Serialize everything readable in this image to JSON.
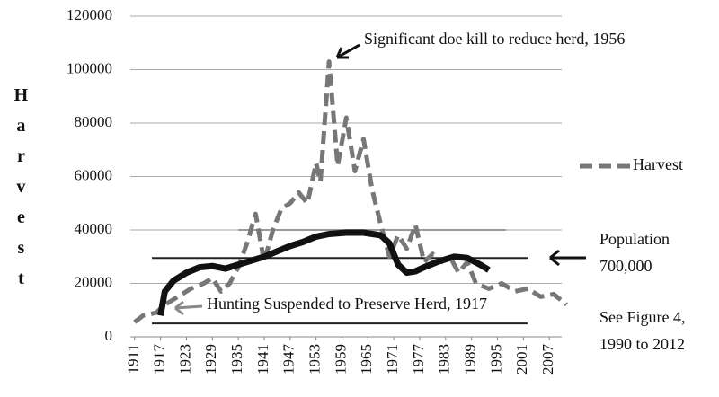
{
  "chart_data": {
    "type": "line",
    "y_label": "Harvest",
    "xlim": [
      1910,
      2013
    ],
    "xticks": [
      1911,
      1917,
      1923,
      1929,
      1935,
      1941,
      1947,
      1953,
      1959,
      1965,
      1971,
      1977,
      1983,
      1989,
      1995,
      2001,
      2007
    ],
    "ylim": [
      0,
      120000
    ],
    "yticks": [
      0,
      20000,
      40000,
      60000,
      80000,
      100000,
      120000
    ],
    "grid": true,
    "legend": "right",
    "series": [
      {
        "name": "Harvest",
        "color": "#777777",
        "dashed": true,
        "x": [
          1911,
          1913,
          1916,
          1918,
          1921,
          1924,
          1927,
          1929,
          1931,
          1933,
          1935,
          1937,
          1939,
          1941,
          1943,
          1945,
          1947,
          1949,
          1951,
          1953,
          1954,
          1956,
          1958,
          1960,
          1962,
          1964,
          1966,
          1968,
          1970,
          1972,
          1974,
          1976,
          1978,
          1980,
          1982,
          1984,
          1986,
          1988,
          1990,
          1993,
          1996,
          1999,
          2002,
          2005,
          2008,
          2011
        ],
        "values": [
          5500,
          8000,
          9000,
          12000,
          15000,
          18000,
          20000,
          22000,
          17000,
          20000,
          26000,
          35000,
          46000,
          28000,
          40000,
          48000,
          50000,
          54000,
          50000,
          65000,
          58000,
          103000,
          64000,
          82000,
          62000,
          74000,
          55000,
          42000,
          30000,
          38000,
          33000,
          42000,
          28000,
          31000,
          28000,
          30000,
          24000,
          28000,
          20000,
          18000,
          20000,
          17000,
          18000,
          15000,
          16000,
          12000
        ]
      },
      {
        "color": "#111111",
        "dashed": false,
        "x": [
          1917,
          1918,
          1920,
          1923,
          1926,
          1929,
          1932,
          1935,
          1938,
          1941,
          1944,
          1947,
          1950,
          1953,
          1956,
          1960,
          1964,
          1968,
          1970,
          1972,
          1974,
          1976,
          1978,
          1981,
          1983,
          1985,
          1988,
          1991,
          1993
        ],
        "values": [
          8000,
          17000,
          21000,
          24000,
          26000,
          26500,
          25500,
          27000,
          28500,
          30000,
          32000,
          34000,
          35500,
          37500,
          38500,
          39000,
          39000,
          38000,
          35000,
          27000,
          24000,
          24500,
          26000,
          28000,
          29000,
          30000,
          29500,
          27000,
          25000
        ]
      }
    ],
    "reference_lines": [
      {
        "y": 40000,
        "x": [
          1935,
          1997
        ],
        "color": "#999999"
      },
      {
        "y": 29500,
        "x": [
          1915,
          2002
        ],
        "color": "#222222"
      },
      {
        "y": 5000,
        "x": [
          1915,
          2002
        ],
        "color": "#222222"
      }
    ],
    "annotations": [
      {
        "text": "Significant doe kill to reduce herd, 1956"
      },
      {
        "text": "Hunting Suspended to Preserve Herd, 1917"
      },
      {
        "text": "Population"
      },
      {
        "text": "700,000"
      },
      {
        "text": "See Figure 4,"
      },
      {
        "text": "1990 to 2012"
      }
    ]
  }
}
